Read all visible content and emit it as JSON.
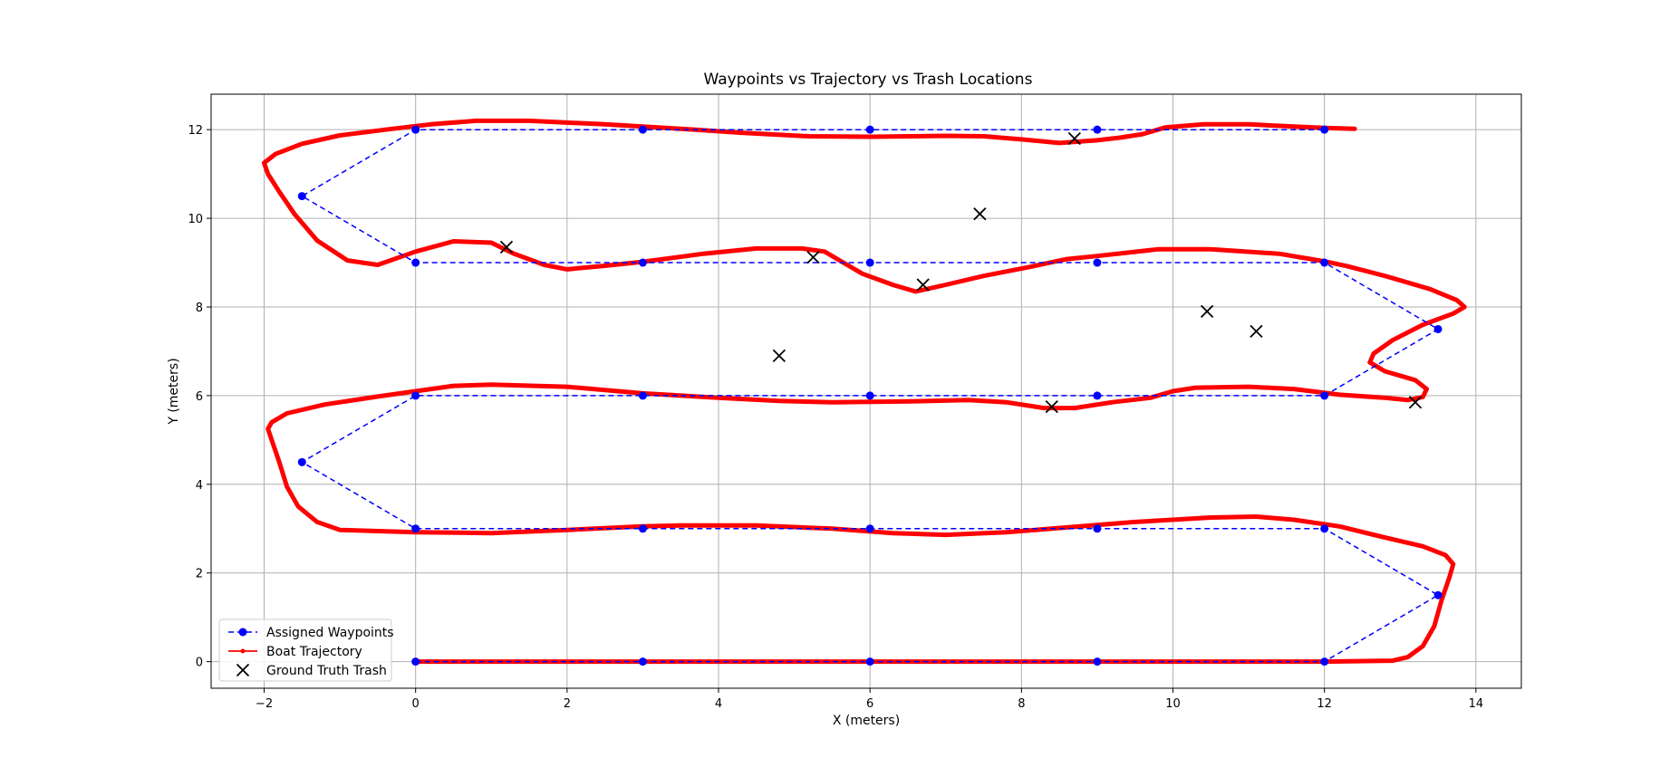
{
  "chart_data": {
    "type": "line",
    "title": "Waypoints vs Trajectory vs Trash Locations",
    "xlabel": "X (meters)",
    "ylabel": "Y (meters)",
    "xlim": [
      -2.7,
      14.6
    ],
    "ylim": [
      -0.6,
      12.8
    ],
    "xticks": [
      -2,
      0,
      2,
      4,
      6,
      8,
      10,
      12,
      14
    ],
    "xtick_labels": [
      "−2",
      "0",
      "2",
      "4",
      "6",
      "8",
      "10",
      "12",
      "14"
    ],
    "yticks": [
      0,
      2,
      4,
      6,
      8,
      10,
      12
    ],
    "ytick_labels": [
      "0",
      "2",
      "4",
      "6",
      "8",
      "10",
      "12"
    ],
    "grid": true,
    "legend_position": "lower-left",
    "series": [
      {
        "name": "Assigned Waypoints",
        "style": "dashed-line-with-dots",
        "color": "#0000ff",
        "points": [
          [
            0,
            0
          ],
          [
            3,
            0
          ],
          [
            6,
            0
          ],
          [
            9,
            0
          ],
          [
            12,
            0
          ],
          [
            13.5,
            1.5
          ],
          [
            12,
            3
          ],
          [
            9,
            3
          ],
          [
            6,
            3
          ],
          [
            3,
            3
          ],
          [
            0,
            3
          ],
          [
            -1.5,
            4.5
          ],
          [
            0,
            6
          ],
          [
            3,
            6
          ],
          [
            6,
            6
          ],
          [
            9,
            6
          ],
          [
            12,
            6
          ],
          [
            13.5,
            7.5
          ],
          [
            12,
            9
          ],
          [
            9,
            9
          ],
          [
            6,
            9
          ],
          [
            3,
            9
          ],
          [
            0,
            9
          ],
          [
            -1.5,
            10.5
          ],
          [
            0,
            12
          ],
          [
            3,
            12
          ],
          [
            6,
            12
          ],
          [
            9,
            12
          ],
          [
            12,
            12
          ]
        ]
      },
      {
        "name": "Boat Trajectory",
        "style": "thick-line",
        "color": "#ff0000",
        "points": [
          [
            0,
            0
          ],
          [
            3,
            0
          ],
          [
            6,
            0
          ],
          [
            9,
            0
          ],
          [
            12,
            0
          ],
          [
            12.9,
            0.02
          ],
          [
            13.1,
            0.1
          ],
          [
            13.3,
            0.35
          ],
          [
            13.45,
            0.8
          ],
          [
            13.55,
            1.4
          ],
          [
            13.65,
            1.9
          ],
          [
            13.7,
            2.2
          ],
          [
            13.6,
            2.4
          ],
          [
            13.3,
            2.6
          ],
          [
            12.8,
            2.8
          ],
          [
            12.2,
            3.05
          ],
          [
            11.6,
            3.2
          ],
          [
            11.1,
            3.27
          ],
          [
            10.5,
            3.25
          ],
          [
            9.5,
            3.15
          ],
          [
            9,
            3.08
          ],
          [
            8.4,
            3
          ],
          [
            7.8,
            2.92
          ],
          [
            7,
            2.86
          ],
          [
            6.3,
            2.9
          ],
          [
            5.5,
            3
          ],
          [
            4.5,
            3.07
          ],
          [
            3.5,
            3.07
          ],
          [
            3,
            3.05
          ],
          [
            2,
            2.97
          ],
          [
            1,
            2.9
          ],
          [
            0,
            2.92
          ],
          [
            -1,
            2.97
          ],
          [
            -1.3,
            3.15
          ],
          [
            -1.55,
            3.5
          ],
          [
            -1.7,
            3.95
          ],
          [
            -1.8,
            4.5
          ],
          [
            -1.88,
            4.9
          ],
          [
            -1.95,
            5.25
          ],
          [
            -1.9,
            5.4
          ],
          [
            -1.7,
            5.6
          ],
          [
            -1.2,
            5.8
          ],
          [
            -0.5,
            5.98
          ],
          [
            0,
            6.1
          ],
          [
            0.5,
            6.22
          ],
          [
            1,
            6.25
          ],
          [
            2,
            6.2
          ],
          [
            3,
            6.05
          ],
          [
            4,
            5.95
          ],
          [
            4.8,
            5.88
          ],
          [
            5.5,
            5.85
          ],
          [
            6.5,
            5.87
          ],
          [
            7.3,
            5.9
          ],
          [
            7.8,
            5.85
          ],
          [
            8.3,
            5.72
          ],
          [
            8.7,
            5.72
          ],
          [
            9.2,
            5.85
          ],
          [
            9.7,
            5.95
          ],
          [
            10,
            6.1
          ],
          [
            10.3,
            6.18
          ],
          [
            11,
            6.2
          ],
          [
            11.6,
            6.15
          ],
          [
            12.2,
            6.02
          ],
          [
            12.8,
            5.95
          ],
          [
            13.1,
            5.9
          ],
          [
            13.3,
            5.97
          ],
          [
            13.35,
            6.15
          ],
          [
            13.2,
            6.35
          ],
          [
            12.8,
            6.55
          ],
          [
            12.6,
            6.75
          ],
          [
            12.65,
            6.95
          ],
          [
            12.9,
            7.25
          ],
          [
            13.3,
            7.6
          ],
          [
            13.7,
            7.85
          ],
          [
            13.85,
            8
          ],
          [
            13.75,
            8.15
          ],
          [
            13.4,
            8.4
          ],
          [
            12.8,
            8.7
          ],
          [
            12.3,
            8.92
          ],
          [
            12,
            9.03
          ],
          [
            11.4,
            9.2
          ],
          [
            10.5,
            9.3
          ],
          [
            9.8,
            9.3
          ],
          [
            9,
            9.15
          ],
          [
            8.6,
            9.08
          ],
          [
            8.1,
            8.9
          ],
          [
            7.5,
            8.7
          ],
          [
            7,
            8.5
          ],
          [
            6.6,
            8.35
          ],
          [
            6.3,
            8.5
          ],
          [
            5.9,
            8.75
          ],
          [
            5.6,
            9.05
          ],
          [
            5.4,
            9.25
          ],
          [
            5.1,
            9.32
          ],
          [
            4.5,
            9.32
          ],
          [
            3.8,
            9.2
          ],
          [
            3,
            9.02
          ],
          [
            2.5,
            8.93
          ],
          [
            2,
            8.85
          ],
          [
            1.7,
            8.95
          ],
          [
            1.3,
            9.2
          ],
          [
            1,
            9.45
          ],
          [
            0.5,
            9.48
          ],
          [
            0,
            9.25
          ],
          [
            -0.5,
            8.95
          ],
          [
            -0.9,
            9.05
          ],
          [
            -1.3,
            9.5
          ],
          [
            -1.6,
            10.1
          ],
          [
            -1.8,
            10.6
          ],
          [
            -1.95,
            11
          ],
          [
            -2,
            11.25
          ],
          [
            -1.85,
            11.45
          ],
          [
            -1.5,
            11.68
          ],
          [
            -1,
            11.87
          ],
          [
            -0.3,
            12.02
          ],
          [
            0.2,
            12.12
          ],
          [
            0.8,
            12.2
          ],
          [
            1.5,
            12.2
          ],
          [
            2.5,
            12.12
          ],
          [
            3.5,
            12.02
          ],
          [
            4.3,
            11.93
          ],
          [
            5.2,
            11.85
          ],
          [
            6,
            11.84
          ],
          [
            7,
            11.86
          ],
          [
            7.5,
            11.85
          ],
          [
            8,
            11.78
          ],
          [
            8.5,
            11.7
          ],
          [
            9,
            11.76
          ],
          [
            9.3,
            11.82
          ],
          [
            9.6,
            11.9
          ],
          [
            9.9,
            12.05
          ],
          [
            10.4,
            12.12
          ],
          [
            11,
            12.12
          ],
          [
            11.6,
            12.07
          ],
          [
            12,
            12.04
          ],
          [
            12.4,
            12.02
          ]
        ]
      },
      {
        "name": "Ground Truth Trash",
        "style": "x-markers",
        "color": "#000000",
        "points": [
          [
            1.2,
            9.35
          ],
          [
            4.8,
            6.9
          ],
          [
            5.25,
            9.12
          ],
          [
            6.7,
            8.5
          ],
          [
            7.45,
            10.1
          ],
          [
            8.4,
            5.75
          ],
          [
            8.7,
            11.8
          ],
          [
            10.45,
            7.9
          ],
          [
            11.1,
            7.45
          ],
          [
            13.2,
            5.85
          ]
        ]
      }
    ]
  }
}
